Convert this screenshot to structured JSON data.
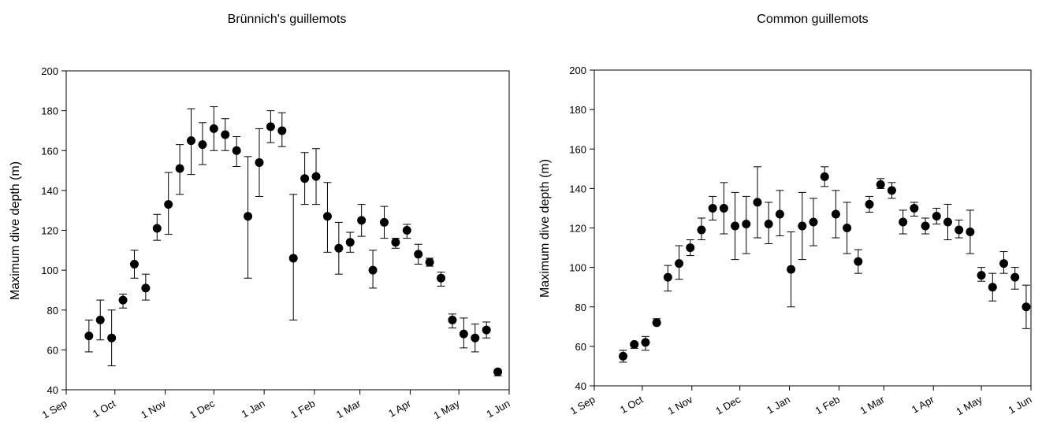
{
  "chart_data": [
    {
      "type": "scatter",
      "title": "Brünnich's guillemots",
      "xlabel": "",
      "ylabel": "Maximum dive depth (m)",
      "ylim": [
        40,
        200
      ],
      "yticks": [
        40,
        60,
        80,
        100,
        120,
        140,
        160,
        180,
        200
      ],
      "xlim": [
        0,
        273
      ],
      "x_ticks": [
        {
          "day": 0,
          "label": "1 Sep"
        },
        {
          "day": 30,
          "label": "1 Oct"
        },
        {
          "day": 61,
          "label": "1 Nov"
        },
        {
          "day": 91,
          "label": "1 Dec"
        },
        {
          "day": 122,
          "label": "1 Jan"
        },
        {
          "day": 153,
          "label": "1 Feb"
        },
        {
          "day": 181,
          "label": "1 Mar"
        },
        {
          "day": 212,
          "label": "1 Apr"
        },
        {
          "day": 242,
          "label": "1 May"
        },
        {
          "day": 273,
          "label": "1 Jun"
        }
      ],
      "grid": false,
      "points": [
        {
          "x": 14,
          "y": 67,
          "err_low": 59,
          "err_high": 75
        },
        {
          "x": 21,
          "y": 75,
          "err_low": 65,
          "err_high": 85
        },
        {
          "x": 28,
          "y": 66,
          "err_low": 52,
          "err_high": 80
        },
        {
          "x": 35,
          "y": 85,
          "err_low": 81,
          "err_high": 88
        },
        {
          "x": 42,
          "y": 103,
          "err_low": 96,
          "err_high": 110
        },
        {
          "x": 49,
          "y": 91,
          "err_low": 85,
          "err_high": 98
        },
        {
          "x": 56,
          "y": 121,
          "err_low": 115,
          "err_high": 128
        },
        {
          "x": 63,
          "y": 133,
          "err_low": 118,
          "err_high": 149
        },
        {
          "x": 70,
          "y": 151,
          "err_low": 138,
          "err_high": 163
        },
        {
          "x": 77,
          "y": 165,
          "err_low": 148,
          "err_high": 181
        },
        {
          "x": 84,
          "y": 163,
          "err_low": 153,
          "err_high": 174
        },
        {
          "x": 91,
          "y": 171,
          "err_low": 160,
          "err_high": 182
        },
        {
          "x": 98,
          "y": 168,
          "err_low": 160,
          "err_high": 176
        },
        {
          "x": 105,
          "y": 160,
          "err_low": 152,
          "err_high": 167
        },
        {
          "x": 112,
          "y": 127,
          "err_low": 96,
          "err_high": 157
        },
        {
          "x": 119,
          "y": 154,
          "err_low": 137,
          "err_high": 171
        },
        {
          "x": 126,
          "y": 172,
          "err_low": 164,
          "err_high": 180
        },
        {
          "x": 133,
          "y": 170,
          "err_low": 162,
          "err_high": 179
        },
        {
          "x": 140,
          "y": 106,
          "err_low": 75,
          "err_high": 138
        },
        {
          "x": 147,
          "y": 146,
          "err_low": 133,
          "err_high": 159
        },
        {
          "x": 154,
          "y": 147,
          "err_low": 133,
          "err_high": 161
        },
        {
          "x": 161,
          "y": 127,
          "err_low": 109,
          "err_high": 144
        },
        {
          "x": 168,
          "y": 111,
          "err_low": 98,
          "err_high": 124
        },
        {
          "x": 175,
          "y": 114,
          "err_low": 109,
          "err_high": 119
        },
        {
          "x": 182,
          "y": 125,
          "err_low": 117,
          "err_high": 133
        },
        {
          "x": 189,
          "y": 100,
          "err_low": 91,
          "err_high": 110
        },
        {
          "x": 196,
          "y": 124,
          "err_low": 116,
          "err_high": 132
        },
        {
          "x": 203,
          "y": 114,
          "err_low": 111,
          "err_high": 116
        },
        {
          "x": 210,
          "y": 120,
          "err_low": 116,
          "err_high": 123
        },
        {
          "x": 217,
          "y": 108,
          "err_low": 103,
          "err_high": 113
        },
        {
          "x": 224,
          "y": 104,
          "err_low": 102,
          "err_high": 106
        },
        {
          "x": 231,
          "y": 96,
          "err_low": 92,
          "err_high": 99
        },
        {
          "x": 238,
          "y": 75,
          "err_low": 71,
          "err_high": 78
        },
        {
          "x": 245,
          "y": 68,
          "err_low": 61,
          "err_high": 76
        },
        {
          "x": 252,
          "y": 66,
          "err_low": 59,
          "err_high": 73
        },
        {
          "x": 259,
          "y": 70,
          "err_low": 66,
          "err_high": 74
        },
        {
          "x": 266,
          "y": 49,
          "err_low": 47,
          "err_high": 50
        }
      ],
      "marker_color": "#000000"
    },
    {
      "type": "scatter",
      "title": "Common guillemots",
      "xlabel": "",
      "ylabel": "Maximum dive depth (m)",
      "ylim": [
        40,
        200
      ],
      "yticks": [
        40,
        60,
        80,
        100,
        120,
        140,
        160,
        180,
        200
      ],
      "xlim": [
        0,
        273
      ],
      "x_ticks": [
        {
          "day": 0,
          "label": "1 Sep"
        },
        {
          "day": 30,
          "label": "1 Oct"
        },
        {
          "day": 61,
          "label": "1 Nov"
        },
        {
          "day": 91,
          "label": "1 Dec"
        },
        {
          "day": 122,
          "label": "1 Jan"
        },
        {
          "day": 153,
          "label": "1 Feb"
        },
        {
          "day": 181,
          "label": "1 Mar"
        },
        {
          "day": 212,
          "label": "1 Apr"
        },
        {
          "day": 242,
          "label": "1 May"
        },
        {
          "day": 273,
          "label": "1 Jun"
        }
      ],
      "grid": false,
      "points": [
        {
          "x": 18,
          "y": 55,
          "err_low": 52,
          "err_high": 58
        },
        {
          "x": 25,
          "y": 61,
          "err_low": 59,
          "err_high": 62
        },
        {
          "x": 32,
          "y": 62,
          "err_low": 58,
          "err_high": 65
        },
        {
          "x": 39,
          "y": 72,
          "err_low": 71,
          "err_high": 74
        },
        {
          "x": 46,
          "y": 95,
          "err_low": 88,
          "err_high": 101
        },
        {
          "x": 53,
          "y": 102,
          "err_low": 94,
          "err_high": 111
        },
        {
          "x": 60,
          "y": 110,
          "err_low": 106,
          "err_high": 114
        },
        {
          "x": 67,
          "y": 119,
          "err_low": 114,
          "err_high": 125
        },
        {
          "x": 74,
          "y": 130,
          "err_low": 124,
          "err_high": 136
        },
        {
          "x": 81,
          "y": 130,
          "err_low": 117,
          "err_high": 143
        },
        {
          "x": 88,
          "y": 121,
          "err_low": 104,
          "err_high": 138
        },
        {
          "x": 95,
          "y": 122,
          "err_low": 107,
          "err_high": 136
        },
        {
          "x": 102,
          "y": 133,
          "err_low": 115,
          "err_high": 151
        },
        {
          "x": 109,
          "y": 122,
          "err_low": 112,
          "err_high": 133
        },
        {
          "x": 116,
          "y": 127,
          "err_low": 116,
          "err_high": 139
        },
        {
          "x": 123,
          "y": 99,
          "err_low": 80,
          "err_high": 118
        },
        {
          "x": 130,
          "y": 121,
          "err_low": 104,
          "err_high": 138
        },
        {
          "x": 137,
          "y": 123,
          "err_low": 111,
          "err_high": 135
        },
        {
          "x": 144,
          "y": 146,
          "err_low": 141,
          "err_high": 151
        },
        {
          "x": 151,
          "y": 127,
          "err_low": 115,
          "err_high": 139
        },
        {
          "x": 158,
          "y": 120,
          "err_low": 107,
          "err_high": 133
        },
        {
          "x": 165,
          "y": 103,
          "err_low": 97,
          "err_high": 109
        },
        {
          "x": 172,
          "y": 132,
          "err_low": 128,
          "err_high": 136
        },
        {
          "x": 179,
          "y": 142,
          "err_low": 140,
          "err_high": 145
        },
        {
          "x": 186,
          "y": 139,
          "err_low": 135,
          "err_high": 143
        },
        {
          "x": 193,
          "y": 123,
          "err_low": 117,
          "err_high": 129
        },
        {
          "x": 200,
          "y": 130,
          "err_low": 126,
          "err_high": 133
        },
        {
          "x": 207,
          "y": 121,
          "err_low": 117,
          "err_high": 125
        },
        {
          "x": 214,
          "y": 126,
          "err_low": 122,
          "err_high": 130
        },
        {
          "x": 221,
          "y": 123,
          "err_low": 114,
          "err_high": 132
        },
        {
          "x": 228,
          "y": 119,
          "err_low": 115,
          "err_high": 124
        },
        {
          "x": 235,
          "y": 118,
          "err_low": 107,
          "err_high": 129
        },
        {
          "x": 242,
          "y": 96,
          "err_low": 93,
          "err_high": 100
        },
        {
          "x": 249,
          "y": 90,
          "err_low": 83,
          "err_high": 97
        },
        {
          "x": 256,
          "y": 102,
          "err_low": 97,
          "err_high": 108
        },
        {
          "x": 263,
          "y": 95,
          "err_low": 89,
          "err_high": 100
        },
        {
          "x": 270,
          "y": 80,
          "err_low": 69,
          "err_high": 91
        }
      ],
      "marker_color": "#000000"
    }
  ]
}
